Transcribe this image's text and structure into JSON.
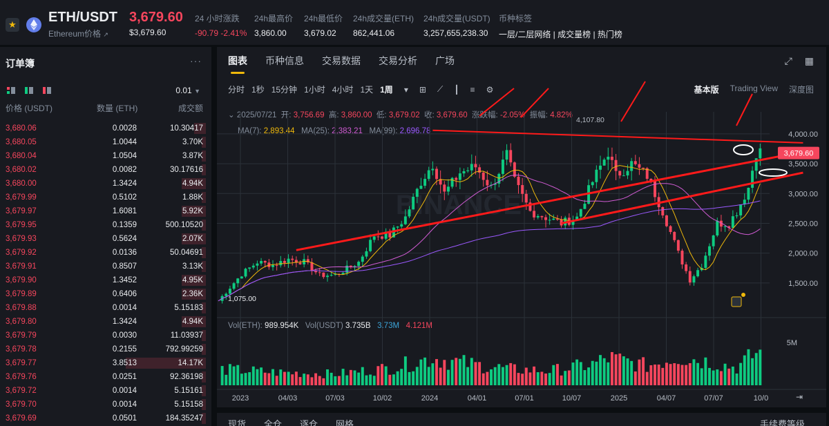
{
  "header": {
    "pair": "ETH/USDT",
    "subtitle": "Ethereum价格",
    "subtitle_icon": "external-link-icon",
    "last_price": "3,679.60",
    "last_price_usd": "$3,679.60",
    "change_label": "24 小时涨跌",
    "change_value": "-90.79 -2.41%",
    "high_label": "24h最高价",
    "high_value": "3,860.00",
    "low_label": "24h最低价",
    "low_value": "3,679.02",
    "vol_eth_label": "24h成交量(ETH)",
    "vol_eth_value": "862,441.06",
    "vol_usdt_label": "24h成交量(USDT)",
    "vol_usdt_value": "3,257,655,238.30",
    "tags_label": "币种标签",
    "tags_value": "一层/二层网络 | 成交量榜 | 热门榜"
  },
  "orderbook": {
    "title": "订单簿",
    "more_icon": "more-dots-icon",
    "precision": "0.01",
    "col_price": "价格 (USDT)",
    "col_qty": "数量 (ETH)",
    "col_total": "成交额",
    "rows": [
      {
        "price": "3,680.06",
        "qty": "0.0028",
        "total": "10.30417",
        "depth": 0.06
      },
      {
        "price": "3,680.05",
        "qty": "1.0044",
        "total": "3.70K",
        "depth": 0.02
      },
      {
        "price": "3,680.04",
        "qty": "1.0504",
        "total": "3.87K",
        "depth": 0.02
      },
      {
        "price": "3,680.02",
        "qty": "0.0082",
        "total": "30.17616",
        "depth": 0.02
      },
      {
        "price": "3,680.00",
        "qty": "1.3424",
        "total": "4.94K",
        "depth": 0.12
      },
      {
        "price": "3,679.99",
        "qty": "0.5102",
        "total": "1.88K",
        "depth": 0.02
      },
      {
        "price": "3,679.97",
        "qty": "1.6081",
        "total": "5.92K",
        "depth": 0.12
      },
      {
        "price": "3,679.95",
        "qty": "0.1359",
        "total": "500.10520",
        "depth": 0.02
      },
      {
        "price": "3,679.93",
        "qty": "0.5624",
        "total": "2.07K",
        "depth": 0.12
      },
      {
        "price": "3,679.92",
        "qty": "0.0136",
        "total": "50.04691",
        "depth": 0.02
      },
      {
        "price": "3,679.91",
        "qty": "0.8507",
        "total": "3.13K",
        "depth": 0.02
      },
      {
        "price": "3,679.90",
        "qty": "1.3452",
        "total": "4.95K",
        "depth": 0.12
      },
      {
        "price": "3,679.89",
        "qty": "0.6406",
        "total": "2.36K",
        "depth": 0.12
      },
      {
        "price": "3,679.88",
        "qty": "0.0014",
        "total": "5.15183",
        "depth": 0.02
      },
      {
        "price": "3,679.80",
        "qty": "1.3424",
        "total": "4.94K",
        "depth": 0.12
      },
      {
        "price": "3,679.79",
        "qty": "0.0030",
        "total": "11.03937",
        "depth": 0.02
      },
      {
        "price": "3,679.78",
        "qty": "0.2155",
        "total": "792.99259",
        "depth": 0.02
      },
      {
        "price": "3,679.77",
        "qty": "3.8513",
        "total": "14.17K",
        "depth": 0.4
      },
      {
        "price": "3,679.76",
        "qty": "0.0251",
        "total": "92.36198",
        "depth": 0.02
      },
      {
        "price": "3,679.72",
        "qty": "0.0014",
        "total": "5.15161",
        "depth": 0.02
      },
      {
        "price": "3,679.70",
        "qty": "0.0014",
        "total": "5.15158",
        "depth": 0.02
      },
      {
        "price": "3,679.69",
        "qty": "0.0501",
        "total": "184.35247",
        "depth": 0.02
      }
    ]
  },
  "chart_panel": {
    "tabs": [
      "图表",
      "币种信息",
      "交易数据",
      "交易分析",
      "广场"
    ],
    "timeframes": [
      "分时",
      "1秒",
      "15分钟",
      "1小时",
      "4小时",
      "1天",
      "1周"
    ],
    "active_timeframe": "1周",
    "views": [
      "基本版",
      "Trading View",
      "深度图"
    ],
    "active_view": "基本版",
    "ohlc": {
      "date": "2025/07/21",
      "open_label": "开:",
      "open": "3,756.69",
      "high_label": "高:",
      "high": "3,860.00",
      "low_label": "低:",
      "low": "3,679.02",
      "close_label": "收:",
      "close": "3,679.60",
      "chg_label": "涨跌幅:",
      "chg": "-2.05%",
      "amp_label": "振幅:",
      "amp": "4.82%"
    },
    "ma": {
      "ma7_label": "MA(7):",
      "ma7": "2,893.44",
      "ma25_label": "MA(25):",
      "ma25": "2,383.21",
      "ma99_label": "MA(99):",
      "ma99": "2,696.78"
    },
    "vol": {
      "eth_label": "Vol(ETH):",
      "eth": "989.954K",
      "usdt_label": "Vol(USDT)",
      "usdt": "3.735B",
      "ma1": "3.73M",
      "ma2": "4.121M"
    },
    "bottom_tabs": [
      "现货",
      "全仓",
      "逐仓",
      "网格",
      "手续费等级"
    ]
  },
  "colors": {
    "up": "#0ecb81",
    "down": "#f6465d",
    "accent": "#f0b90b",
    "ma7": "#f0b90b",
    "ma25": "#d05bd3",
    "ma99": "#9b59ff",
    "annotation": "#ff1a1a"
  },
  "chart_data": {
    "type": "candlestick",
    "interval": "1周",
    "x_ticks": [
      "2023",
      "04/03",
      "07/03",
      "10/02",
      "2024",
      "04/01",
      "07/01",
      "10/07",
      "2025",
      "04/07",
      "07/07",
      "10/0"
    ],
    "y_ticks": [
      "4,000.00",
      "3,500.00",
      "3,000.00",
      "2,500.00",
      "2,000.00",
      "1,500.00"
    ],
    "ylim": [
      1000,
      4300
    ],
    "volume_tick": "5M",
    "current_price_label": "3,679.60",
    "extremes": {
      "high": "4,107.80",
      "low": "1,075.00"
    },
    "watermark": "BINANCE",
    "close_path": [
      [
        0,
        1200
      ],
      [
        6,
        1650
      ],
      [
        10,
        1850
      ],
      [
        14,
        1800
      ],
      [
        18,
        1900
      ],
      [
        22,
        1850
      ],
      [
        26,
        1630
      ],
      [
        30,
        1630
      ],
      [
        36,
        1850
      ],
      [
        40,
        2300
      ],
      [
        44,
        2300
      ],
      [
        48,
        2600
      ],
      [
        52,
        3200
      ],
      [
        55,
        3500
      ],
      [
        58,
        3000
      ],
      [
        62,
        3350
      ],
      [
        66,
        3450
      ],
      [
        70,
        3100
      ],
      [
        74,
        3650
      ],
      [
        76,
        3200
      ],
      [
        80,
        2700
      ],
      [
        84,
        2600
      ],
      [
        88,
        2500
      ],
      [
        92,
        2600
      ],
      [
        96,
        3200
      ],
      [
        100,
        3700
      ],
      [
        102,
        3300
      ],
      [
        106,
        3500
      ],
      [
        110,
        3300
      ],
      [
        114,
        2700
      ],
      [
        118,
        2000
      ],
      [
        121,
        1550
      ],
      [
        124,
        1800
      ],
      [
        128,
        2500
      ],
      [
        131,
        2500
      ],
      [
        133,
        2700
      ],
      [
        136,
        3100
      ],
      [
        138,
        3700
      ]
    ],
    "volume_profile": [
      [
        0,
        2.0
      ],
      [
        15,
        1.6
      ],
      [
        30,
        1.4
      ],
      [
        45,
        2.2
      ],
      [
        55,
        3.4
      ],
      [
        65,
        2.6
      ],
      [
        75,
        2.0
      ],
      [
        85,
        1.8
      ],
      [
        96,
        2.6
      ],
      [
        100,
        3.4
      ],
      [
        110,
        2.4
      ],
      [
        118,
        3.6
      ],
      [
        125,
        3.0
      ],
      [
        133,
        2.2
      ],
      [
        138,
        4.0
      ]
    ],
    "ma7": "2,893.44",
    "ma25": "2,383.21",
    "ma99": "2,696.78",
    "annotations": [
      {
        "type": "trendline",
        "from": [
          55,
          4060
        ],
        "to": [
          150,
          3850
        ]
      },
      {
        "type": "trendline",
        "from": [
          20,
          2050
        ],
        "to": [
          150,
          3700
        ]
      },
      {
        "type": "trendline",
        "from": [
          88,
          2500
        ],
        "to": [
          150,
          3350
        ]
      }
    ]
  }
}
